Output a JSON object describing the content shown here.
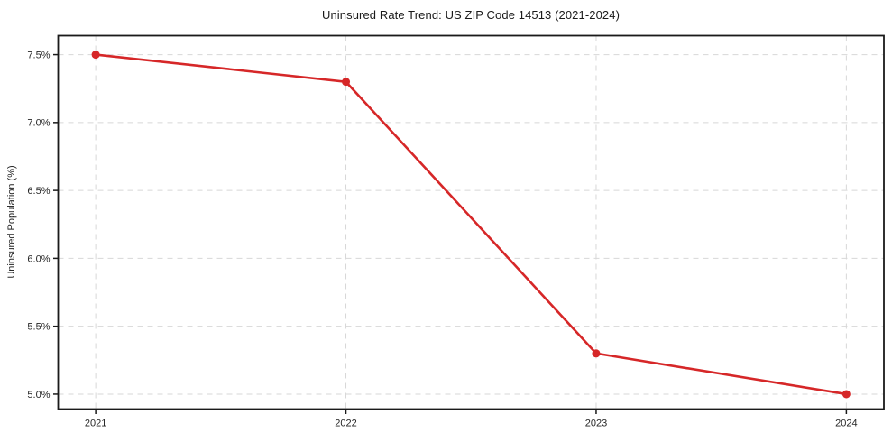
{
  "figure": {
    "background": "#ffffff"
  },
  "chart_data": {
    "type": "line",
    "title": "Uninsured Rate Trend: US ZIP Code 14513 (2021-2024)",
    "xlabel": "",
    "ylabel": "Uninsured Population (%)",
    "categories": [
      "2021",
      "2022",
      "2023",
      "2024"
    ],
    "series": [
      {
        "values": [
          7.5,
          7.3,
          5.3,
          5.0
        ],
        "color": "#d62728",
        "marker": "circle"
      }
    ],
    "ytick_values": [
      5.0,
      5.5,
      6.0,
      6.5,
      7.0,
      7.5
    ],
    "ytick_labels": [
      "5.0%",
      "5.5%",
      "6.0%",
      "6.5%",
      "7.0%",
      "7.5%"
    ],
    "ylim": [
      4.89,
      7.64
    ],
    "xlim": [
      -0.15,
      3.15
    ],
    "grid": true,
    "grid_style": "dashed",
    "grid_color": "#d7d7d7",
    "axis_color": "#1a1a1a",
    "text_color": "#262626",
    "line_width": 2.6,
    "marker_radius": 4.5,
    "legend": "none"
  }
}
